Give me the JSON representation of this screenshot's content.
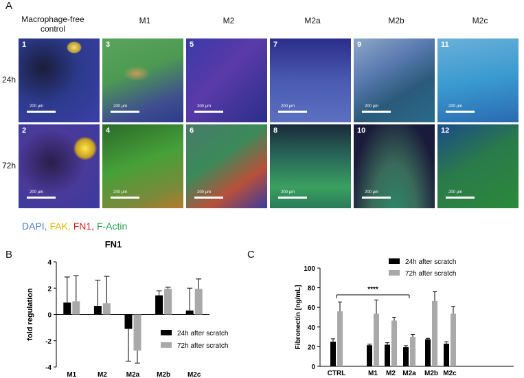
{
  "panel_a": {
    "letter": "A",
    "column_headers": [
      "Macrophage-free control",
      "M1",
      "M2",
      "M2a",
      "M2b",
      "M2c"
    ],
    "row_labels": [
      "24h",
      "72h"
    ],
    "tiles": [
      {
        "number": "1",
        "scale": "200 µm"
      },
      {
        "number": "3",
        "scale": "200 µm"
      },
      {
        "number": "5",
        "scale": "200 µm"
      },
      {
        "number": "7",
        "scale": "200 µm"
      },
      {
        "number": "9",
        "scale": "200 µm"
      },
      {
        "number": "11",
        "scale": "200 µm"
      },
      {
        "number": "2",
        "scale": "200 µm"
      },
      {
        "number": "4",
        "scale": "200 µm"
      },
      {
        "number": "6",
        "scale": "200 µm"
      },
      {
        "number": "8",
        "scale": "200 µm"
      },
      {
        "number": "10",
        "scale": "200 µm"
      },
      {
        "number": "12",
        "scale": "200 µm"
      }
    ],
    "stain_legend": [
      {
        "label": "DAPI,",
        "color": "#4a7fd0"
      },
      {
        "label": "FAK,",
        "color": "#e8b400"
      },
      {
        "label": "FN1,",
        "color": "#d42020"
      },
      {
        "label": "F-Actin",
        "color": "#22a04a"
      }
    ]
  },
  "panel_b": {
    "letter": "B"
  },
  "panel_c": {
    "letter": "C"
  },
  "chart_data": [
    {
      "type": "bar",
      "title": "FN1",
      "ylabel": "fold regulation",
      "xlabel": "",
      "categories": [
        "M1",
        "M2",
        "M2a",
        "M2b",
        "M2c"
      ],
      "ylim": [
        -4,
        4
      ],
      "yticks": [
        -4,
        -2,
        0,
        2,
        4
      ],
      "series": [
        {
          "name": "24h after scratch",
          "color": "#000000",
          "values": [
            0.9,
            0.65,
            -1.1,
            1.45,
            0.3
          ],
          "errors": [
            1.95,
            1.95,
            2.45,
            0.35,
            1.7
          ]
        },
        {
          "name": "72h after scratch",
          "color": "#a9a9a9",
          "values": [
            1.0,
            0.85,
            -2.75,
            1.95,
            1.95
          ],
          "errors": [
            1.95,
            2.05,
            0.95,
            0.12,
            0.75
          ]
        }
      ],
      "legend_position": "lower-right"
    },
    {
      "type": "bar",
      "title": "",
      "ylabel": "Fibronectin [ng/mL]",
      "xlabel": "",
      "categories": [
        "CTRL",
        "M1",
        "M2",
        "M2a",
        "M2b",
        "M2c"
      ],
      "ylim": [
        0,
        100
      ],
      "yticks": [
        0,
        20,
        40,
        60,
        80,
        100
      ],
      "series": [
        {
          "name": "24h after scratch",
          "color": "#000000",
          "values": [
            25,
            21.5,
            22,
            19.5,
            27.5,
            23
          ],
          "errors": [
            3,
            1,
            2,
            1.5,
            1,
            2
          ]
        },
        {
          "name": "72h after scratch",
          "color": "#a9a9a9",
          "values": [
            56,
            53.5,
            46.5,
            30,
            66.5,
            53.5
          ],
          "errors": [
            9.5,
            14,
            3.5,
            2.5,
            9.5,
            7.5
          ]
        }
      ],
      "legend_position": "top-right",
      "significance": {
        "label": "****",
        "from": "CTRL",
        "to": "M2a"
      }
    }
  ]
}
